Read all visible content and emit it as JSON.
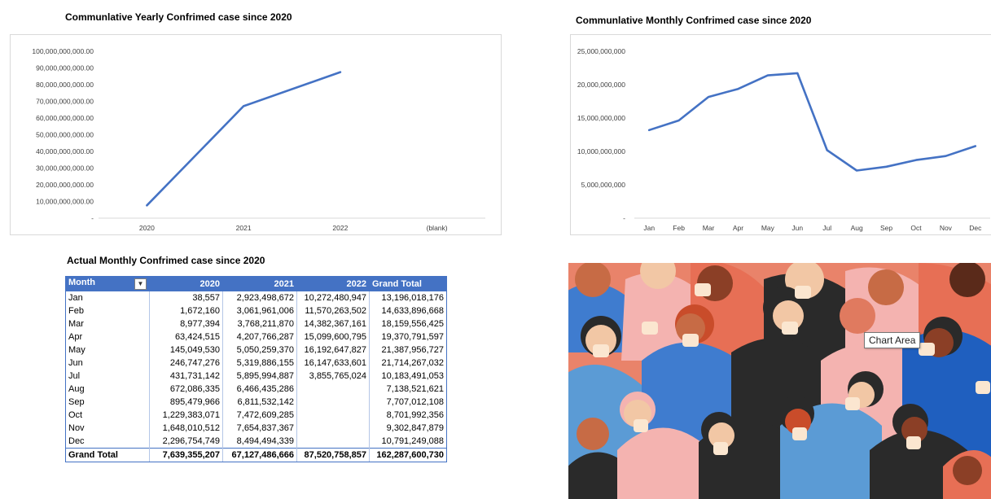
{
  "yearly_chart": {
    "title": "Communlative Yearly Confrimed case since 2020"
  },
  "monthly_chart": {
    "title": "Communlative Monthly Confrimed case since 2020"
  },
  "table_title": "Actual Monthly Confrimed  case since 2020",
  "pivot": {
    "headers": [
      "Month",
      "2020",
      "2021",
      "2022",
      "Grand Total"
    ],
    "filter_icon": "filter-dropdown-icon",
    "rows": [
      [
        "Jan",
        "38,557",
        "2,923,498,672",
        "10,272,480,947",
        "13,196,018,176"
      ],
      [
        "Feb",
        "1,672,160",
        "3,061,961,006",
        "11,570,263,502",
        "14,633,896,668"
      ],
      [
        "Mar",
        "8,977,394",
        "3,768,211,870",
        "14,382,367,161",
        "18,159,556,425"
      ],
      [
        "Apr",
        "63,424,515",
        "4,207,766,287",
        "15,099,600,795",
        "19,370,791,597"
      ],
      [
        "May",
        "145,049,530",
        "5,050,259,370",
        "16,192,647,827",
        "21,387,956,727"
      ],
      [
        "Jun",
        "246,747,276",
        "5,319,886,155",
        "16,147,633,601",
        "21,714,267,032"
      ],
      [
        "Jul",
        "431,731,142",
        "5,895,994,887",
        "3,855,765,024",
        "10,183,491,053"
      ],
      [
        "Aug",
        "672,086,335",
        "6,466,435,286",
        "",
        "7,138,521,621"
      ],
      [
        "Sep",
        "895,479,966",
        "6,811,532,142",
        "",
        "7,707,012,108"
      ],
      [
        "Oct",
        "1,229,383,071",
        "7,472,609,285",
        "",
        "8,701,992,356"
      ],
      [
        "Nov",
        "1,648,010,512",
        "7,654,837,367",
        "",
        "9,302,847,879"
      ],
      [
        "Dec",
        "2,296,754,749",
        "8,494,494,339",
        "",
        "10,791,249,088"
      ]
    ],
    "total": [
      "Grand Total",
      "7,639,355,207",
      "67,127,486,666",
      "87,520,758,857",
      "162,287,600,730"
    ]
  },
  "tooltip": "Chart Area",
  "colors": {
    "line": "#4472c4",
    "header_bg": "#4472c4",
    "grid": "#d9d9d9"
  },
  "chart_data": [
    {
      "type": "line",
      "title": "Communlative Yearly Confrimed case since 2020",
      "categories": [
        "2020",
        "2021",
        "2022",
        "(blank)"
      ],
      "values": [
        7639355207,
        67127486666,
        87520758857,
        null
      ],
      "ylim": [
        0,
        100000000000
      ],
      "yticks": [
        "-",
        "10,000,000,000.00",
        "20,000,000,000.00",
        "30,000,000,000.00",
        "40,000,000,000.00",
        "50,000,000,000.00",
        "60,000,000,000.00",
        "70,000,000,000.00",
        "80,000,000,000.00",
        "90,000,000,000.00",
        "100,000,000,000.00"
      ],
      "grid": false,
      "legend": "none"
    },
    {
      "type": "line",
      "title": "Communlative Monthly Confrimed case since 2020",
      "categories": [
        "Jan",
        "Feb",
        "Mar",
        "Apr",
        "May",
        "Jun",
        "Jul",
        "Aug",
        "Sep",
        "Oct",
        "Nov",
        "Dec"
      ],
      "values": [
        13196018176,
        14633896668,
        18159556425,
        19370791597,
        21387956727,
        21714267032,
        10183491053,
        7138521621,
        7707012108,
        8701992356,
        9302847879,
        10791249088
      ],
      "ylim": [
        0,
        25000000000
      ],
      "yticks": [
        "-",
        "5,000,000,000",
        "10,000,000,000",
        "15,000,000,000",
        "20,000,000,000",
        "25,000,000,000"
      ],
      "grid": false,
      "legend": "none"
    }
  ]
}
